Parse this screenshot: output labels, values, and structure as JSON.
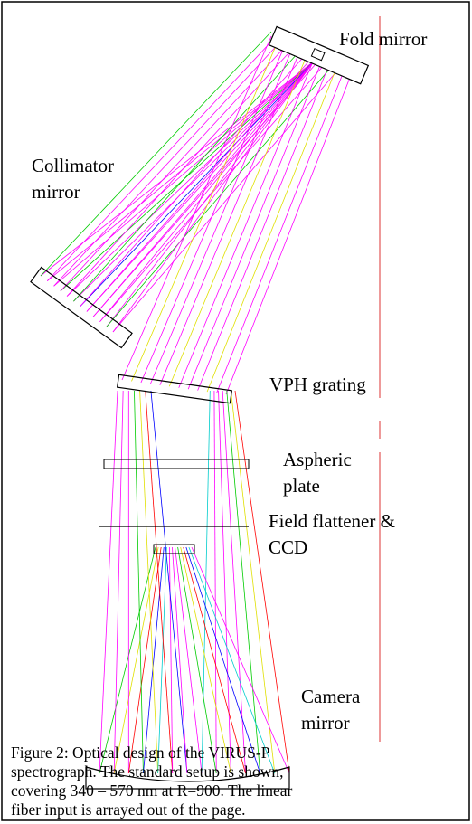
{
  "labels": [
    {
      "lines": [
        "Fold mirror"
      ]
    },
    {
      "lines": [
        "Collimator",
        "mirror"
      ]
    },
    {
      "lines": [
        "VPH grating"
      ]
    },
    {
      "lines": [
        "Aspheric",
        "plate"
      ]
    },
    {
      "lines": [
        "Field flattener &",
        "CCD"
      ]
    },
    {
      "lines": [
        "Camera",
        "mirror"
      ]
    }
  ],
  "caption": {
    "lines": [
      "Figure 2:  Optical design of the VIRUS-P",
      "spectrograph. The standard setup is shown,",
      "covering 340 – 570 nm at R=900.  The linear",
      "fiber input is arrayed out of the page."
    ]
  }
}
